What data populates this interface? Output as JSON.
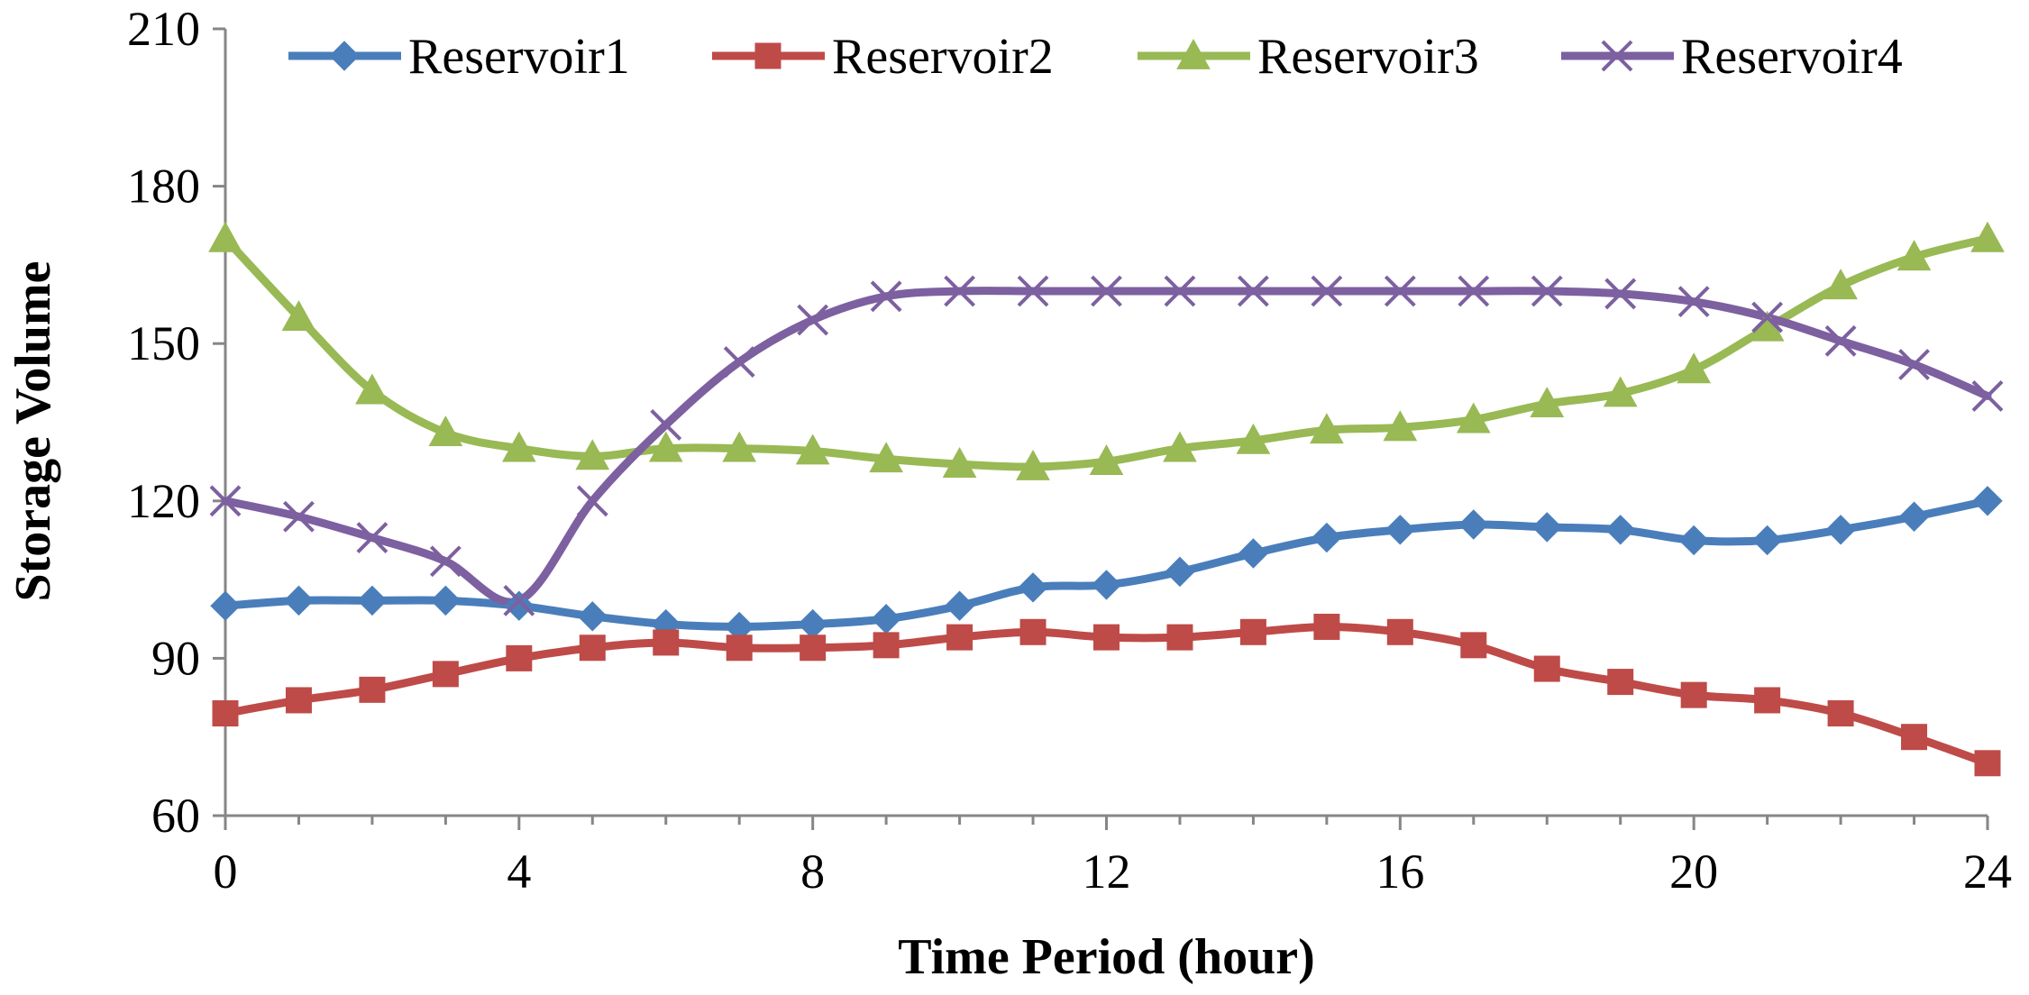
{
  "chart_data": {
    "type": "line",
    "title": "",
    "xlabel": "Time Period (hour)",
    "ylabel": "Storage Volume",
    "xlim": [
      0,
      24
    ],
    "ylim": [
      60,
      210
    ],
    "xticks": [
      0,
      4,
      8,
      12,
      16,
      20,
      24
    ],
    "yticks": [
      60,
      90,
      120,
      150,
      180,
      210
    ],
    "grid": false,
    "legend_position": "top",
    "x": [
      0,
      1,
      2,
      3,
      4,
      5,
      6,
      7,
      8,
      9,
      10,
      11,
      12,
      13,
      14,
      15,
      16,
      17,
      18,
      19,
      20,
      21,
      22,
      23,
      24
    ],
    "series": [
      {
        "name": "Reservoir1",
        "color": "#4A7EBB",
        "marker": "diamond",
        "values": [
          100,
          101,
          101,
          101,
          100,
          98,
          96.5,
          96,
          96.5,
          97.5,
          100,
          103.5,
          104,
          106.5,
          110,
          113,
          114.5,
          115.5,
          115,
          114.5,
          112.5,
          112.5,
          114.5,
          117,
          120
        ]
      },
      {
        "name": "Reservoir2",
        "color": "#BE4B48",
        "marker": "square",
        "values": [
          79.5,
          82,
          84,
          87,
          90,
          92,
          93,
          92,
          92,
          92.5,
          94,
          95,
          94,
          94,
          95,
          96,
          95,
          92.5,
          88,
          85.5,
          83,
          82,
          79.5,
          75,
          70
        ]
      },
      {
        "name": "Reservoir3",
        "color": "#98B954",
        "marker": "triangle",
        "values": [
          170,
          155,
          141,
          133,
          130,
          128.5,
          130,
          130,
          129.5,
          128,
          127,
          126.5,
          127.5,
          130,
          131.5,
          133.5,
          134,
          135.5,
          138.5,
          140.5,
          145,
          153,
          161,
          166.5,
          170
        ]
      },
      {
        "name": "Reservoir4",
        "color": "#7D60A0",
        "marker": "x",
        "values": [
          120,
          117,
          113,
          108.5,
          101,
          120,
          134.5,
          146.5,
          154.5,
          159,
          160,
          160,
          160,
          160,
          160,
          160,
          160,
          160,
          160,
          159.5,
          158,
          155,
          150.5,
          146,
          140
        ]
      }
    ]
  }
}
